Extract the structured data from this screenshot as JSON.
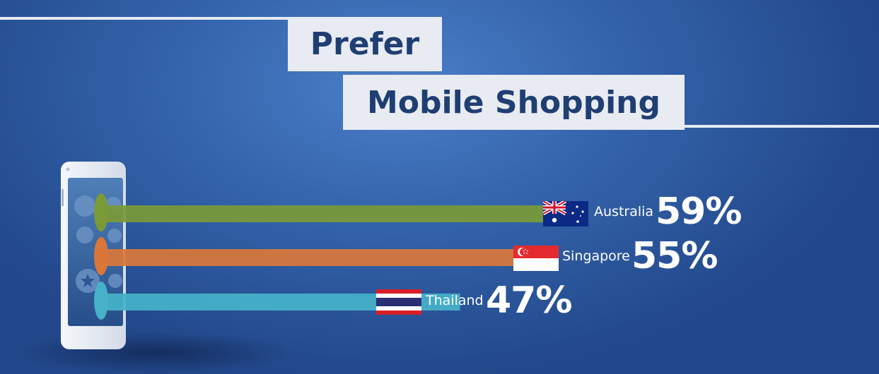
{
  "title": {
    "line1": "Prefer",
    "line2": "Mobile Shopping"
  },
  "colors": {
    "australia": "#7a9a38",
    "singapore": "#d9773a",
    "thailand": "#46b1c9",
    "title_text": "#1f3f73"
  },
  "chart_data": {
    "type": "bar",
    "orientation": "horizontal",
    "title": "Prefer Mobile Shopping",
    "categories": [
      "Australia",
      "Singapore",
      "Thailand"
    ],
    "values": [
      59,
      55,
      47
    ],
    "value_labels": [
      "59%",
      "55%",
      "47%"
    ],
    "unit": "%",
    "colors": [
      "#7a9a38",
      "#d9773a",
      "#46b1c9"
    ],
    "xlabel": "",
    "ylabel": "",
    "grid": false,
    "legend": "none"
  },
  "icons": {
    "phone": "smartphone-icon",
    "flags": [
      "australia-flag-icon",
      "singapore-flag-icon",
      "thailand-flag-icon"
    ]
  }
}
